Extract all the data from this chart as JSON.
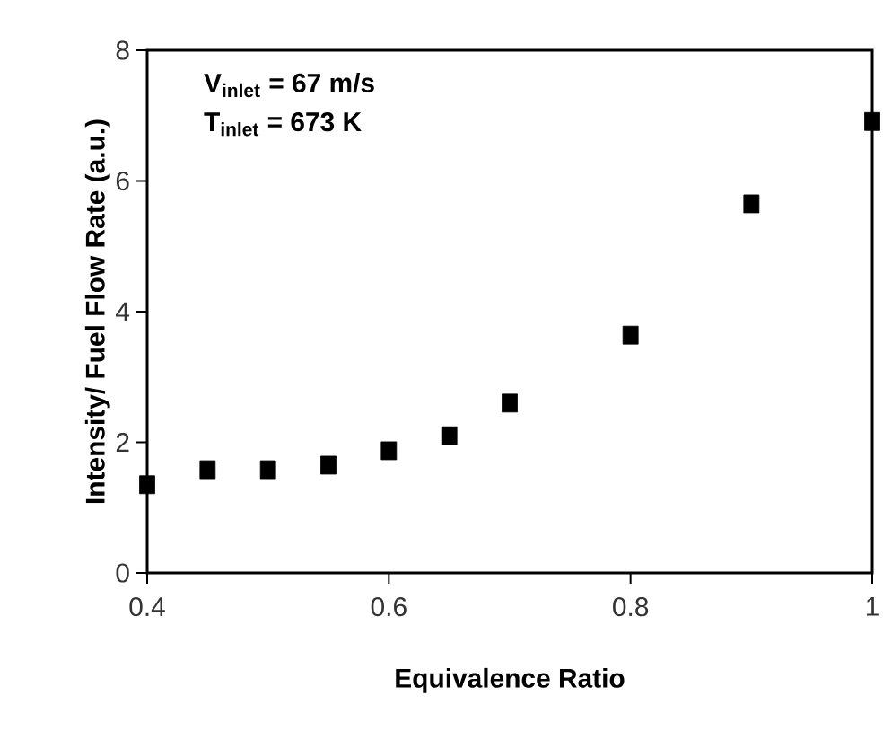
{
  "chart_data": {
    "type": "scatter",
    "xlabel": "Equivalence Ratio",
    "ylabel": "Intensity/ Fuel Flow Rate (a.u.)",
    "x": [
      0.4,
      0.45,
      0.5,
      0.55,
      0.6,
      0.65,
      0.7,
      0.8,
      0.9,
      1.0
    ],
    "series": [
      {
        "color": "#000000",
        "values": [
          1.35,
          1.58,
          1.58,
          1.65,
          1.87,
          2.1,
          2.6,
          3.64,
          5.65,
          6.91
        ]
      }
    ],
    "xlim": [
      0.4,
      1.0
    ],
    "ylim": [
      0,
      8
    ],
    "xticks": [
      0.4,
      0.6,
      0.8,
      {
        "value": 1.0,
        "label": "1"
      }
    ],
    "yticks": [
      0,
      2,
      4,
      6,
      8
    ],
    "marker": "square",
    "grid": false,
    "legend": false,
    "annotations": [
      "V$_{inlet}$ = 67 m/s",
      "T$_{inlet}$ = 673 K"
    ]
  }
}
